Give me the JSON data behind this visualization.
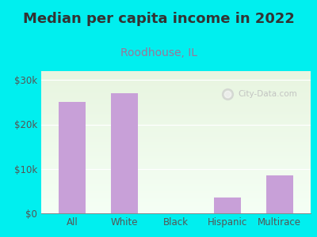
{
  "title": "Median per capita income in 2022",
  "subtitle": "Roodhouse, IL",
  "categories": [
    "All",
    "White",
    "Black",
    "Hispanic",
    "Multirace"
  ],
  "values": [
    25000,
    27000,
    0,
    3500,
    8500
  ],
  "bar_color": "#c8a0d8",
  "background_color": "#00efef",
  "plot_bg_colors": [
    "#e8f5e0",
    "#f5fff5"
  ],
  "title_color": "#333333",
  "subtitle_color": "#997799",
  "tick_color": "#555555",
  "ylim": [
    0,
    32000
  ],
  "yticks": [
    0,
    10000,
    20000,
    30000
  ],
  "ytick_labels": [
    "$0",
    "$10k",
    "$20k",
    "$30k"
  ],
  "watermark_text": "City-Data.com",
  "title_fontsize": 13,
  "subtitle_fontsize": 10,
  "tick_fontsize": 8.5
}
